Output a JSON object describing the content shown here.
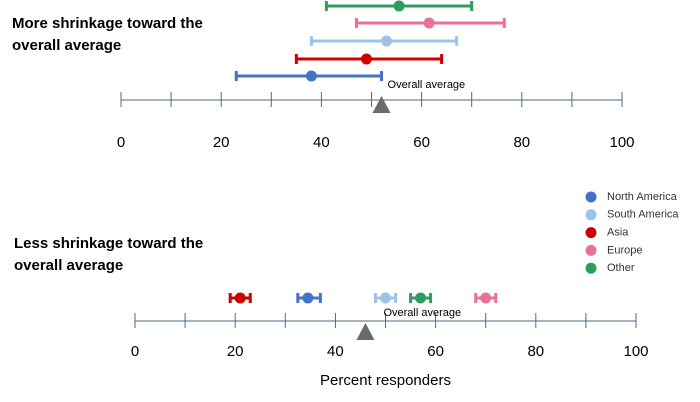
{
  "chart_data": [
    {
      "type": "errorbar",
      "title": [
        "More shrinkage toward the",
        "overall average"
      ],
      "xlim": [
        0,
        100
      ],
      "xticks": [
        0,
        20,
        40,
        60,
        80,
        100
      ],
      "minor_xticks": [
        10,
        30,
        50,
        70,
        90
      ],
      "reference": {
        "value": 52,
        "label": "Overall average",
        "color": "#6b6b6b"
      },
      "series": [
        {
          "name": "North America",
          "color": "#4472c4",
          "values": [
            38
          ],
          "low": [
            23
          ],
          "high": [
            52
          ]
        },
        {
          "name": "South America",
          "color": "#9dc3e6",
          "values": [
            53
          ],
          "low": [
            38
          ],
          "high": [
            67
          ]
        },
        {
          "name": "Asia",
          "color": "#d00000",
          "values": [
            49
          ],
          "low": [
            35
          ],
          "high": [
            64
          ]
        },
        {
          "name": "Europe",
          "color": "#e8719a",
          "values": [
            61.5
          ],
          "low": [
            47
          ],
          "high": [
            76.5
          ]
        },
        {
          "name": "Other",
          "color": "#2e9c5f",
          "values": [
            55.5
          ],
          "low": [
            41
          ],
          "high": [
            70
          ]
        }
      ]
    },
    {
      "type": "errorbar",
      "title": [
        "Less shrinkage toward the",
        "overall average"
      ],
      "x_label": "Percent responders",
      "xlim": [
        0,
        100
      ],
      "xticks": [
        0,
        20,
        40,
        60,
        80,
        100
      ],
      "minor_xticks": [
        10,
        30,
        50,
        70,
        90
      ],
      "reference": {
        "value": 46,
        "label": "Overall average",
        "color": "#6b6b6b"
      },
      "series": [
        {
          "color": "#4472c4",
          "values": [
            34.5
          ],
          "low": [
            32.5
          ],
          "high": [
            37
          ]
        },
        {
          "color": "#9dc3e6",
          "values": [
            50
          ],
          "low": [
            48
          ],
          "high": [
            52
          ]
        },
        {
          "color": "#d00000",
          "values": [
            21
          ],
          "low": [
            19
          ],
          "high": [
            23
          ]
        },
        {
          "color": "#e8719a",
          "values": [
            70
          ],
          "low": [
            68
          ],
          "high": [
            72
          ]
        },
        {
          "color": "#2e9c5f",
          "values": [
            57
          ],
          "low": [
            55
          ],
          "high": [
            59
          ]
        }
      ]
    }
  ]
}
